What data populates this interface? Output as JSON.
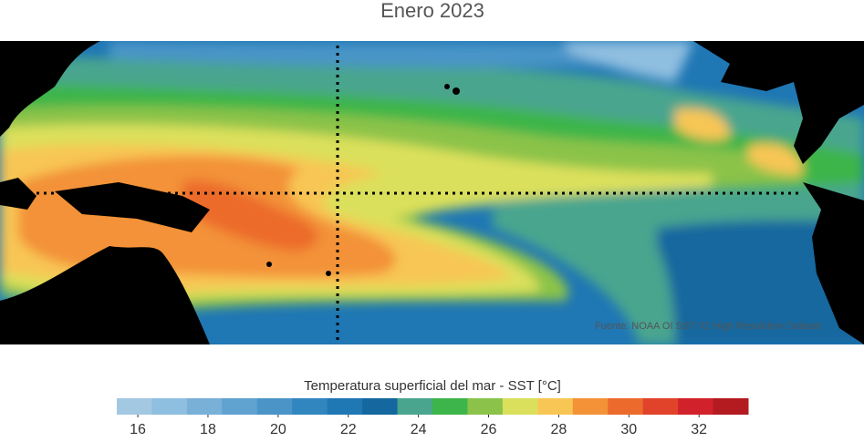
{
  "title": "Enero 2023",
  "source": "Fuente: NOAA OI SST V2 High Resolution Dataset",
  "colorbar": {
    "label": "Temperatura superficial del mar - SST  [°C]",
    "bins": [
      15.4,
      16.4,
      17.4,
      18.4,
      19.4,
      20.4,
      21.4,
      22.4,
      23.4,
      24.4,
      25.4,
      26.4,
      27.4,
      28.4,
      29.4,
      30.4,
      31.4,
      32.4,
      33.4
    ],
    "colors": [
      "#a3c8e2",
      "#8ebee0",
      "#78b0d8",
      "#60a2d0",
      "#4a94c8",
      "#3186bf",
      "#1f77b4",
      "#14689f",
      "#4aa58e",
      "#3db54a",
      "#8bc34a",
      "#dbe05c",
      "#f8c655",
      "#f39237",
      "#ec6a2c",
      "#e0432a",
      "#d1212a",
      "#b31b21"
    ],
    "ticks": [
      16,
      18,
      20,
      22,
      24,
      26,
      28,
      30,
      32
    ]
  }
}
